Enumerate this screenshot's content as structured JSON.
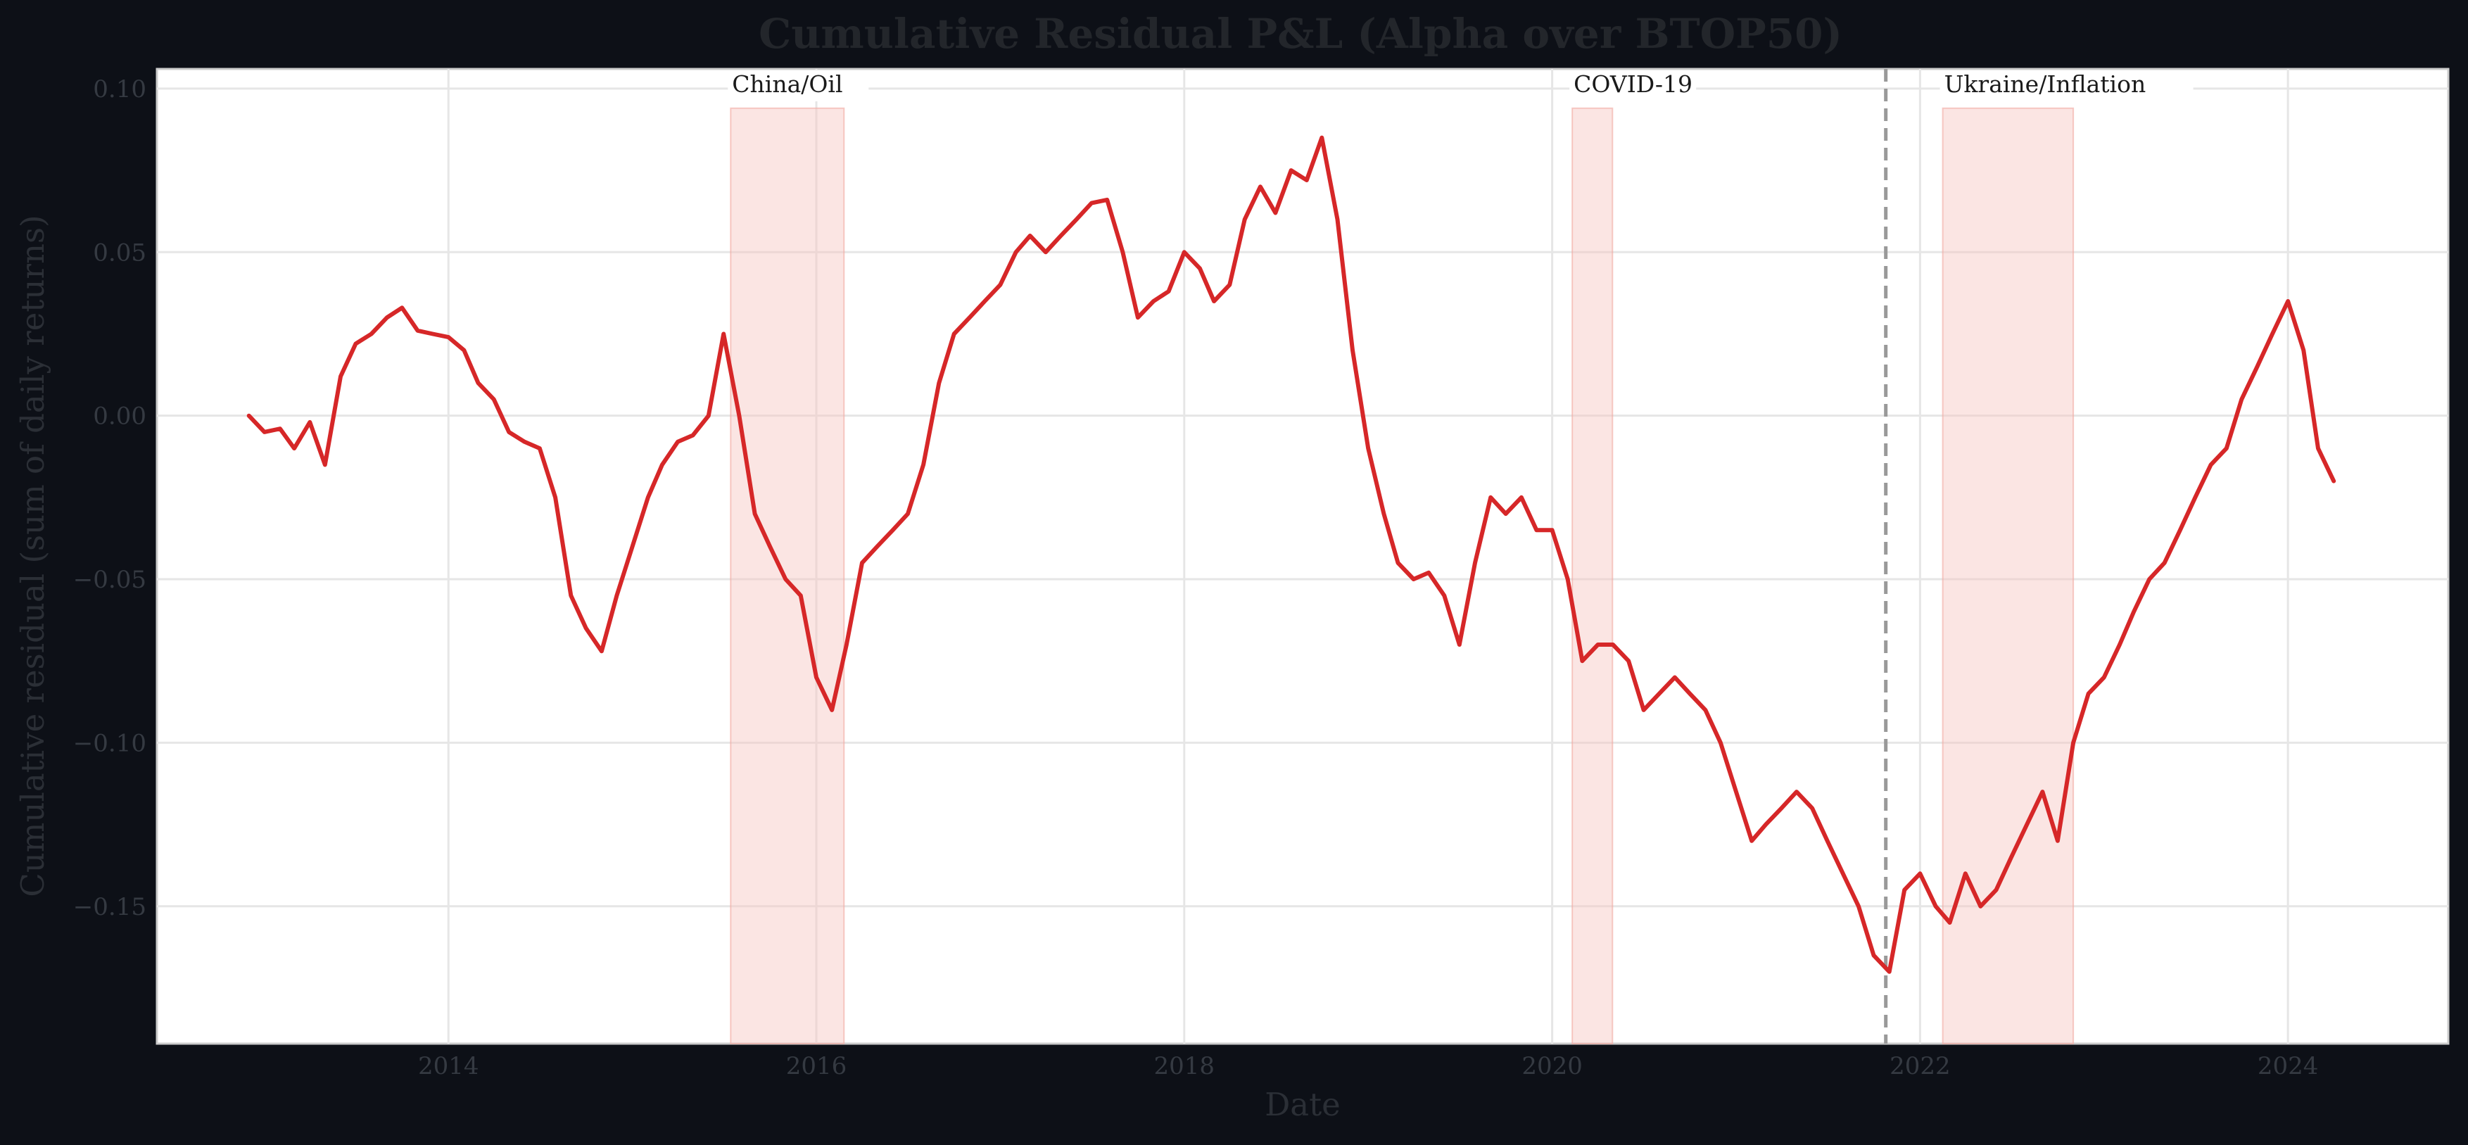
{
  "chart_data": {
    "type": "line",
    "title": "Cumulative Residual P&L (Alpha over BTOP50)",
    "xlabel": "Date",
    "ylabel": "Cumulative residual (sum of daily returns)",
    "xlim": [
      "2012-06-01",
      "2024-11-15"
    ],
    "ylim": [
      -0.192,
      0.106
    ],
    "x_ticks": [
      "2014",
      "2016",
      "2018",
      "2020",
      "2022",
      "2024"
    ],
    "y_ticks": [
      0.1,
      0.05,
      0.0,
      -0.05,
      -0.1,
      -0.15
    ],
    "y_tick_labels": [
      "0.10",
      "0.05",
      "0.00",
      "−0.05",
      "−0.10",
      "−0.15"
    ],
    "grid": true,
    "legend": "none",
    "colors": {
      "line": "#d62728",
      "shade": "#f7c5c0",
      "vline": "#999999",
      "background": "#0d1017",
      "plot_bg": "#ffffff"
    },
    "shaded_periods": [
      {
        "label": "China/Oil",
        "start": "2015-07-15",
        "end": "2016-02-25"
      },
      {
        "label": "COVID-19",
        "start": "2020-02-10",
        "end": "2020-04-30"
      },
      {
        "label": "Ukraine/Inflation",
        "start": "2022-02-15",
        "end": "2022-11-01"
      }
    ],
    "vertical_markers": [
      {
        "date": "2021-10-25",
        "style": "dashed"
      }
    ],
    "series": [
      {
        "x": [
          "2012-12-01",
          "2013-01-01",
          "2013-02-01",
          "2013-03-01",
          "2013-04-01",
          "2013-05-01",
          "2013-06-01",
          "2013-07-01",
          "2013-08-01",
          "2013-09-01",
          "2013-10-01",
          "2013-11-01",
          "2013-12-01",
          "2014-01-01",
          "2014-02-01",
          "2014-03-01",
          "2014-04-01",
          "2014-05-01",
          "2014-06-01",
          "2014-07-01",
          "2014-08-01",
          "2014-09-01",
          "2014-10-01",
          "2014-11-01",
          "2014-12-01",
          "2015-01-01",
          "2015-02-01",
          "2015-03-01",
          "2015-04-01",
          "2015-05-01",
          "2015-06-01",
          "2015-07-01",
          "2015-08-01",
          "2015-09-01",
          "2015-10-01",
          "2015-11-01",
          "2015-12-01",
          "2016-01-01",
          "2016-02-01",
          "2016-03-01",
          "2016-04-01",
          "2016-05-01",
          "2016-06-01",
          "2016-07-01",
          "2016-08-01",
          "2016-09-01",
          "2016-10-01",
          "2016-11-01",
          "2016-12-01",
          "2017-01-01",
          "2017-02-01",
          "2017-03-01",
          "2017-04-01",
          "2017-05-01",
          "2017-06-01",
          "2017-07-01",
          "2017-08-01",
          "2017-09-01",
          "2017-10-01",
          "2017-11-01",
          "2017-12-01",
          "2018-01-01",
          "2018-02-01",
          "2018-03-01",
          "2018-04-01",
          "2018-05-01",
          "2018-06-01",
          "2018-07-01",
          "2018-08-01",
          "2018-09-01",
          "2018-10-01",
          "2018-11-01",
          "2018-12-01",
          "2019-01-01",
          "2019-02-01",
          "2019-03-01",
          "2019-04-01",
          "2019-05-01",
          "2019-06-01",
          "2019-07-01",
          "2019-08-01",
          "2019-09-01",
          "2019-10-01",
          "2019-11-01",
          "2019-12-01",
          "2020-01-01",
          "2020-02-01",
          "2020-03-01",
          "2020-04-01",
          "2020-05-01",
          "2020-06-01",
          "2020-07-01",
          "2020-08-01",
          "2020-09-01",
          "2020-10-01",
          "2020-11-01",
          "2020-12-01",
          "2021-01-01",
          "2021-02-01",
          "2021-03-01",
          "2021-04-01",
          "2021-05-01",
          "2021-06-01",
          "2021-07-01",
          "2021-08-01",
          "2021-09-01",
          "2021-10-01",
          "2021-11-01",
          "2021-12-01",
          "2022-01-01",
          "2022-02-01",
          "2022-03-01",
          "2022-04-01",
          "2022-05-01",
          "2022-06-01",
          "2022-07-01",
          "2022-08-01",
          "2022-09-01",
          "2022-10-01",
          "2022-11-01",
          "2022-12-01",
          "2023-01-01",
          "2023-02-01",
          "2023-03-01",
          "2023-04-01",
          "2023-05-01",
          "2023-06-01",
          "2023-07-01",
          "2023-08-01",
          "2023-09-01",
          "2023-10-01",
          "2023-11-01",
          "2023-12-01",
          "2024-01-01",
          "2024-02-01",
          "2024-03-01",
          "2024-04-01"
        ],
        "values": [
          0.0,
          -0.005,
          -0.004,
          -0.01,
          -0.002,
          -0.015,
          0.012,
          0.022,
          0.025,
          0.03,
          0.033,
          0.026,
          0.025,
          0.024,
          0.02,
          0.01,
          0.005,
          -0.005,
          -0.008,
          -0.01,
          -0.025,
          -0.055,
          -0.065,
          -0.072,
          -0.055,
          -0.04,
          -0.025,
          -0.015,
          -0.008,
          -0.006,
          0.0,
          0.025,
          0.0,
          -0.03,
          -0.04,
          -0.05,
          -0.055,
          -0.08,
          -0.09,
          -0.07,
          -0.045,
          -0.04,
          -0.035,
          -0.03,
          -0.015,
          0.01,
          0.025,
          0.03,
          0.035,
          0.04,
          0.05,
          0.055,
          0.05,
          0.055,
          0.06,
          0.065,
          0.066,
          0.05,
          0.03,
          0.035,
          0.038,
          0.05,
          0.045,
          0.035,
          0.04,
          0.06,
          0.07,
          0.062,
          0.075,
          0.072,
          0.085,
          0.06,
          0.02,
          -0.01,
          -0.03,
          -0.045,
          -0.05,
          -0.048,
          -0.055,
          -0.07,
          -0.045,
          -0.025,
          -0.03,
          -0.025,
          -0.035,
          -0.035,
          -0.05,
          -0.075,
          -0.07,
          -0.07,
          -0.075,
          -0.09,
          -0.085,
          -0.08,
          -0.085,
          -0.09,
          -0.1,
          -0.115,
          -0.13,
          -0.125,
          -0.12,
          -0.115,
          -0.12,
          -0.13,
          -0.14,
          -0.15,
          -0.165,
          -0.17,
          -0.145,
          -0.14,
          -0.15,
          -0.155,
          -0.14,
          -0.15,
          -0.145,
          -0.135,
          -0.125,
          -0.115,
          -0.13,
          -0.1,
          -0.085,
          -0.08,
          -0.07,
          -0.06,
          -0.05,
          -0.045,
          -0.035,
          -0.025,
          -0.015,
          -0.01,
          0.005,
          0.015,
          0.025,
          0.035,
          0.02,
          -0.01,
          -0.02
        ]
      }
    ]
  }
}
